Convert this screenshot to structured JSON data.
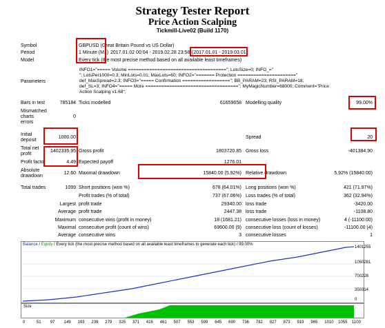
{
  "report": {
    "title": "Strategy Tester Report",
    "ea_name": "Price Action Scalping",
    "server": "Tickmill-Live02 (Build 1170)"
  },
  "rows": {
    "symbol_label": "Symbol",
    "symbol_value": "GBPUSD (Great Britain Pound vs US Dollar)",
    "period_label": "Period",
    "period_tf": "1 Minute (M1)",
    "period_range": "2017.01.02 00:04 - 2019.02.28 23:58",
    "period_dates": "(2017.01.01 - 2019.03.01)",
    "model_label": "Model",
    "model_value": "Every tick (the most precise method based on all available least timeframes)",
    "parameters_label": "Parameters",
    "parameters_lines": [
      "INFO1=\"===== Volume =====================================\"; LotsSize=0; INFO_=\"",
      "\"; LotsPer1000=0.3; MinLots=0.01; MaxLots=60; INFO2=\"======= Protection ======================\"",
      "def_MaxSpread=2.3; INFO3=\"===== Confirmation ==================\"; BB_PARAM=23; RSI_PARAM=18;",
      "def_SL=3; INFO4=\"===== More ===================================\"; MyMagicNumber=68000; Comment=\"Price",
      "Action Scalping v1.68\";"
    ],
    "bars_label": "Bars in test",
    "bars_value": "785184",
    "ticks_label": "Ticks modelled",
    "ticks_value": "61659658",
    "quality_label": "Modelling quality",
    "quality_value": "99.00%",
    "mismatched_label_1": "Mismatched",
    "mismatched_label_2": "charts",
    "mismatched_label_3": "errors",
    "mismatched_value": "0",
    "initial_label_1": "Initial",
    "initial_label_2": "deposit",
    "initial_value": "1000.00",
    "spread_label": "Spread",
    "spread_value": "20",
    "netprofit_label_1": "Total net",
    "netprofit_label_2": "profit",
    "netprofit_value": "1402335.95",
    "grossprofit_label": "Gross profit",
    "grossprofit_value": "1803720.85",
    "grossloss_label": "Gross loss",
    "grossloss_value": "-401384.90",
    "pf_label": "Profit factor",
    "pf_value": "4.49",
    "payoff_label": "Expected payoff",
    "payoff_value": "1276.01",
    "absdd_label_1": "Absolute",
    "absdd_label_2": "drawdown",
    "absdd_value": "12.60",
    "maxdd_label": "Maximal drawdown",
    "maxdd_value": "15840.00 (5.92%)",
    "reldd_label": "Relative drawdown",
    "reldd_value": "5.92% (15840.00)",
    "trades_label": "Total trades",
    "trades_value": "1099",
    "short_label": "Short positions (won %)",
    "short_value": "678 (64.01%)",
    "long_label": "Long positions (won %)",
    "long_value": "421 (71.97%)",
    "ptrades_label": "Profit trades (% of total)",
    "ptrades_value": "737 (67.06%)",
    "ltrades_label": "Loss trades (% of total)",
    "ltrades_value": "362 (32.94%)",
    "largest_label": "Largest",
    "largest_profit_label": "profit trade",
    "largest_profit_value": "29340.00",
    "largest_loss_label": "loss trade",
    "largest_loss_value": "-3420.00",
    "average_label": "Average",
    "average_profit_label": "profit trade",
    "average_profit_value": "2447.38",
    "average_loss_label": "loss trade",
    "average_loss_value": "-1108.80",
    "maximum_label": "Maximum",
    "maximum_wins_label": "consecutive wins (profit in money)",
    "maximum_wins_value": "18 (1681.21)",
    "maximum_losses_label": "consecutive losses (loss in money)",
    "maximum_losses_value": "4 (-11100.00)",
    "maximal_label": "Maximal",
    "maximal_profit_label": "consecutive profit (count of wins)",
    "maximal_profit_value": "69600.00 (9)",
    "maximal_loss_label": "consecutive loss (count of losses)",
    "maximal_loss_value": "-11100.00 (4)",
    "avg2_label": "Average",
    "avg2_wins_label": "consecutive wins",
    "avg2_wins_value": "3",
    "avg2_losses_label": "consecutive losses",
    "avg2_losses_value": "1"
  },
  "chart": {
    "legend_balance": "Balance",
    "legend_sep": " / ",
    "legend_equity": "Equity",
    "legend_rest": " / Every tick (the most precise method based on all available least timeframes to generate each tick) / 99.00%",
    "size_label": "Size",
    "y_ticks": [
      "1401255",
      "1050281",
      "700228",
      "350314",
      "0"
    ],
    "x_ticks": [
      "0",
      "51",
      "97",
      "149",
      "193",
      "239",
      "279",
      "325",
      "371",
      "416",
      "461",
      "507",
      "553",
      "599",
      "645",
      "690",
      "736",
      "782",
      "827",
      "873",
      "919",
      "965",
      "1010",
      "1055",
      "1100"
    ],
    "colors": {
      "balance": "#1f2fbf",
      "size": "#00c000"
    }
  }
}
